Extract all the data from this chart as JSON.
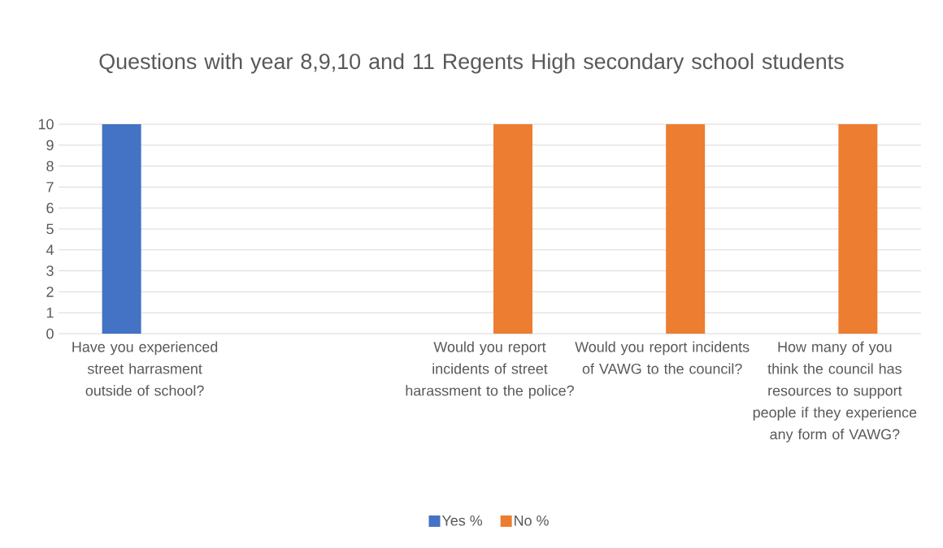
{
  "chart_data": {
    "type": "bar",
    "title": "Questions with year 8,9,10 and 11 Regents High secondary school students",
    "categories": [
      "Have you experienced street harrasment outside of school?",
      null,
      "Would you report incidents of street harassment to the police?",
      "Would you report incidents of VAWG to the council?",
      "How many of you think the council has resources to support people if they experience any form of VAWG?"
    ],
    "series": [
      {
        "name": "Yes %",
        "color": "#4472c4",
        "values": [
          10,
          null,
          0,
          0,
          0
        ]
      },
      {
        "name": "No %",
        "color": "#ed7d31",
        "values": [
          0,
          null,
          10,
          10,
          10
        ]
      }
    ],
    "ylim": [
      0,
      10
    ],
    "yticks": [
      0,
      1,
      2,
      3,
      4,
      5,
      6,
      7,
      8,
      9,
      10
    ],
    "grid": "y",
    "legend": "bottom"
  }
}
